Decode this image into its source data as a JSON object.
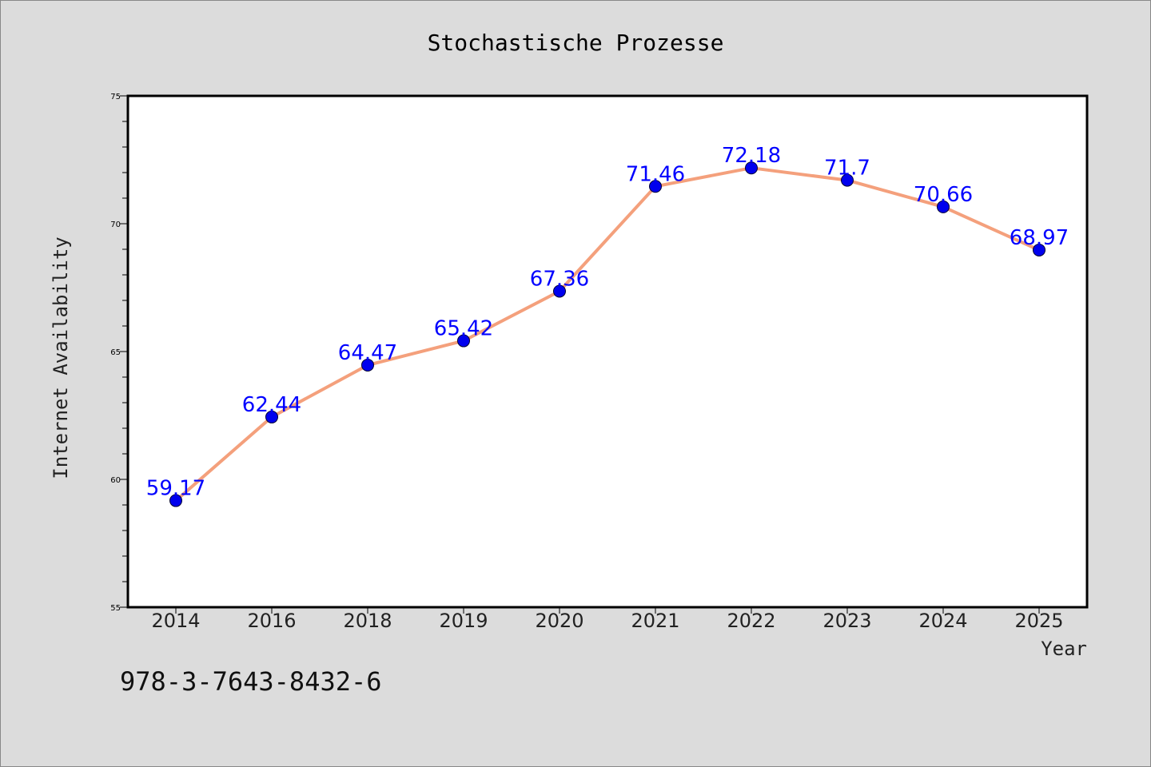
{
  "chart_data": {
    "type": "line",
    "title": "Stochastische Prozesse",
    "xlabel": "Year",
    "ylabel": "Internet Availability",
    "categories": [
      "2014",
      "2016",
      "2018",
      "2019",
      "2020",
      "2021",
      "2022",
      "2023",
      "2024",
      "2025"
    ],
    "series": [
      {
        "values": [
          59.17,
          62.44,
          64.47,
          65.42,
          67.36,
          71.46,
          72.18,
          71.7,
          70.66,
          68.97
        ],
        "data_labels": [
          "59.17",
          "62.44",
          "64.47",
          "65.42",
          "67.36",
          "71.46",
          "72.18",
          "71.7",
          "70.66",
          "68.97"
        ],
        "line_color": "#f4a07c",
        "marker_color": "#0000ee"
      }
    ],
    "ylim": [
      55,
      75
    ],
    "yticks": [
      "55",
      "60",
      "65",
      "70",
      "75"
    ],
    "grid": false,
    "legend": "none"
  },
  "footer": {
    "isbn": "978-3-7643-8432-6"
  },
  "colors": {
    "background": "#dcdcdc",
    "plot_background": "#ffffff",
    "label_color": "#0000ff"
  }
}
